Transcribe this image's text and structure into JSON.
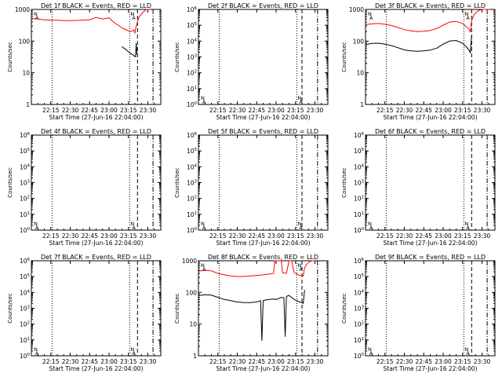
{
  "chart_data": [
    {
      "type": "line",
      "title": "Det 1f BLACK = Events, RED = LLD",
      "xlabel": "Start Time (27-Jun-16 22:04:00)",
      "ylabel": "Counts/sec",
      "yscale": "log",
      "ylim": [
        1,
        1000
      ],
      "ytick_labels": [
        "1",
        "10",
        "100",
        "1000"
      ],
      "xtick_labels": [
        "22:15",
        "22:30",
        "22:45",
        "23:00",
        "23:15",
        "23:30"
      ],
      "x_minutes": [
        15,
        30,
        45,
        60,
        75,
        90
      ],
      "xlim_minutes": [
        0,
        100
      ],
      "corner_labels": [
        "N",
        "A",
        "N",
        "A"
      ],
      "vlines_minutes": {
        "dotted": [
          16,
          76
        ],
        "dashed": [
          82
        ],
        "dashdot": [
          94
        ]
      },
      "series": [
        {
          "name": "RED = LLD",
          "color": "#ff0000",
          "x": [
            0,
            5,
            10,
            15,
            20,
            25,
            30,
            35,
            40,
            45,
            50,
            55,
            60,
            64,
            67,
            70,
            72,
            74,
            75,
            76,
            78,
            79,
            80,
            80.5,
            81,
            83,
            86,
            89,
            92
          ],
          "y": [
            520,
            500,
            470,
            460,
            455,
            445,
            445,
            450,
            460,
            470,
            560,
            500,
            540,
            380,
            320,
            260,
            240,
            220,
            210,
            200,
            210,
            225,
            180,
            240,
            300,
            560,
            800,
            1000,
            1000
          ]
        },
        {
          "name": "BLACK = Events",
          "color": "#000000",
          "x": [
            70,
            71,
            72,
            73,
            74,
            75,
            76,
            77,
            78,
            79,
            80,
            80.5,
            81,
            81.5
          ],
          "y": [
            68,
            62,
            58,
            55,
            50,
            46,
            43,
            40,
            38,
            35,
            33,
            32,
            85,
            38
          ]
        }
      ]
    },
    {
      "type": "line",
      "title": "Det 2f BLACK = Events, RED = LLD",
      "xlabel": "Start Time (27-Jun-16 22:04:00)",
      "ylabel": "Counts/sec",
      "yscale": "log",
      "ylim": [
        1,
        1000000
      ],
      "ytick_labels": [
        "10^0",
        "10^1",
        "10^2",
        "10^3",
        "10^4",
        "10^5",
        "10^6"
      ],
      "xtick_labels": [
        "22:15",
        "22:30",
        "22:45",
        "23:00",
        "23:15",
        "23:30"
      ],
      "x_minutes": [
        15,
        30,
        45,
        60,
        75,
        90
      ],
      "xlim_minutes": [
        0,
        100
      ],
      "corner_labels": [
        "N",
        "A",
        "N",
        "A"
      ],
      "vlines_minutes": {
        "dotted": [
          16,
          76
        ],
        "dashed": [
          80
        ],
        "dashdot": [
          92
        ]
      },
      "series": []
    },
    {
      "type": "line",
      "title": "Det 3f BLACK = Events, RED = LLD",
      "xlabel": "Start Time (27-Jun-16 22:04:00)",
      "ylabel": "Counts/sec",
      "yscale": "log",
      "ylim": [
        1,
        1000
      ],
      "ytick_labels": [
        "1",
        "10",
        "100",
        "1000"
      ],
      "xtick_labels": [
        "22:15",
        "22:30",
        "22:45",
        "23:00",
        "23:15",
        "23:30"
      ],
      "x_minutes": [
        15,
        30,
        45,
        60,
        75,
        90
      ],
      "xlim_minutes": [
        0,
        100
      ],
      "corner_labels": [
        "N",
        "A",
        "N",
        "A"
      ],
      "vlines_minutes": {
        "dotted": [
          16,
          76
        ],
        "dashed": [
          82
        ],
        "dashdot": [
          94
        ]
      },
      "series": [
        {
          "name": "RED = LLD",
          "color": "#ff0000",
          "x": [
            0,
            5,
            10,
            15,
            20,
            25,
            30,
            35,
            40,
            45,
            50,
            55,
            60,
            65,
            70,
            75,
            78,
            80,
            81,
            82,
            84,
            87,
            90,
            93,
            96
          ],
          "y": [
            330,
            350,
            360,
            340,
            310,
            270,
            230,
            210,
            200,
            205,
            215,
            250,
            320,
            400,
            420,
            360,
            280,
            240,
            190,
            450,
            700,
            900,
            1000,
            1000,
            1000
          ]
        },
        {
          "name": "BLACK = Events",
          "color": "#000000",
          "x": [
            0,
            5,
            10,
            15,
            20,
            25,
            30,
            35,
            40,
            45,
            50,
            55,
            60,
            65,
            70,
            75,
            78,
            80,
            81,
            82
          ],
          "y": [
            78,
            85,
            86,
            80,
            72,
            62,
            53,
            49,
            48,
            49,
            52,
            60,
            80,
            100,
            105,
            85,
            65,
            52,
            42,
            150
          ]
        }
      ]
    },
    {
      "type": "line",
      "title": "Det 4f BLACK = Events, RED = LLD",
      "xlabel": "Start Time (27-Jun-16 22:04:00)",
      "ylabel": "Counts/sec",
      "yscale": "log",
      "ylim": [
        1,
        1000000
      ],
      "ytick_labels": [
        "10^0",
        "10^1",
        "10^2",
        "10^3",
        "10^4",
        "10^5",
        "10^6"
      ],
      "xtick_labels": [
        "22:15",
        "22:30",
        "22:45",
        "23:00",
        "23:15",
        "23:30"
      ],
      "x_minutes": [
        15,
        30,
        45,
        60,
        75,
        90
      ],
      "xlim_minutes": [
        0,
        100
      ],
      "corner_labels": [
        "N",
        "A",
        "N",
        "A"
      ],
      "vlines_minutes": {
        "dotted": [
          16,
          76
        ],
        "dashed": [
          82
        ],
        "dashdot": [
          94
        ]
      },
      "series": []
    },
    {
      "type": "line",
      "title": "Det 5f BLACK = Events, RED = LLD",
      "xlabel": "Start Time (27-Jun-16 22:04:00)",
      "ylabel": "Counts/sec",
      "yscale": "log",
      "ylim": [
        1,
        1000000
      ],
      "ytick_labels": [
        "10^0",
        "10^1",
        "10^2",
        "10^3",
        "10^4",
        "10^5",
        "10^6"
      ],
      "xtick_labels": [
        "22:15",
        "22:30",
        "22:45",
        "23:00",
        "23:15",
        "23:30"
      ],
      "x_minutes": [
        15,
        30,
        45,
        60,
        75,
        90
      ],
      "xlim_minutes": [
        0,
        100
      ],
      "corner_labels": [
        "N",
        "A",
        "N",
        "A"
      ],
      "vlines_minutes": {
        "dotted": [
          16,
          76
        ],
        "dashed": [
          80
        ],
        "dashdot": [
          92
        ]
      },
      "series": []
    },
    {
      "type": "line",
      "title": "Det 6f BLACK = Events, RED = LLD",
      "xlabel": "Start Time (27-Jun-16 22:04:00)",
      "ylabel": "Counts/sec",
      "yscale": "log",
      "ylim": [
        1,
        1000000
      ],
      "ytick_labels": [
        "10^0",
        "10^1",
        "10^2",
        "10^3",
        "10^4",
        "10^5",
        "10^6"
      ],
      "xtick_labels": [
        "22:15",
        "22:30",
        "22:45",
        "23:00",
        "23:15",
        "23:30"
      ],
      "x_minutes": [
        15,
        30,
        45,
        60,
        75,
        90
      ],
      "xlim_minutes": [
        0,
        100
      ],
      "corner_labels": [
        "N",
        "A",
        "N",
        "A"
      ],
      "vlines_minutes": {
        "dotted": [
          16,
          76
        ],
        "dashed": [
          82
        ],
        "dashdot": [
          94
        ]
      },
      "series": []
    },
    {
      "type": "line",
      "title": "Det 7f BLACK = Events, RED = LLD",
      "xlabel": "Start Time (27-Jun-16 22:04:00)",
      "ylabel": "Counts/sec",
      "yscale": "log",
      "ylim": [
        1,
        1000000
      ],
      "ytick_labels": [
        "10^0",
        "10^1",
        "10^2",
        "10^3",
        "10^4",
        "10^5",
        "10^6"
      ],
      "xtick_labels": [
        "22:15",
        "22:30",
        "22:45",
        "23:00",
        "23:15",
        "23:30"
      ],
      "x_minutes": [
        15,
        30,
        45,
        60,
        75,
        90
      ],
      "xlim_minutes": [
        0,
        100
      ],
      "corner_labels": [
        "N",
        "A",
        "N",
        "A"
      ],
      "vlines_minutes": {
        "dotted": [
          16,
          76
        ],
        "dashed": [
          82
        ],
        "dashdot": [
          94
        ]
      },
      "series": []
    },
    {
      "type": "line",
      "title": "Det 8f BLACK = Events, RED = LLD",
      "xlabel": "Start Time (27-Jun-16 22:04:00)",
      "ylabel": "Counts/sec",
      "yscale": "log",
      "ylim": [
        1,
        1000
      ],
      "ytick_labels": [
        "1",
        "10",
        "100",
        "1000"
      ],
      "xtick_labels": [
        "22:15",
        "22:30",
        "22:45",
        "23:00",
        "23:15",
        "23:30"
      ],
      "x_minutes": [
        15,
        30,
        45,
        60,
        75,
        90
      ],
      "xlim_minutes": [
        0,
        100
      ],
      "corner_labels": [
        "N",
        "A",
        "N",
        "A"
      ],
      "vlines_minutes": {
        "dotted": [
          16,
          76
        ],
        "dashed": [
          80
        ],
        "dashdot": [
          92
        ]
      },
      "series": [
        {
          "name": "RED = LLD",
          "color": "#ff0000",
          "x": [
            0,
            5,
            10,
            15,
            20,
            25,
            30,
            35,
            40,
            45,
            50,
            55,
            58,
            59,
            60,
            62,
            64,
            65,
            66,
            68,
            70,
            71,
            72,
            74,
            76,
            78,
            80,
            81,
            82,
            84,
            86,
            88,
            90
          ],
          "y": [
            470,
            500,
            480,
            400,
            360,
            330,
            320,
            320,
            330,
            345,
            360,
            380,
            400,
            1000,
            1000,
            1000,
            1000,
            420,
            410,
            400,
            1000,
            1000,
            1000,
            420,
            380,
            350,
            330,
            330,
            600,
            800,
            950,
            1000,
            1000
          ]
        },
        {
          "name": "BLACK = Events",
          "color": "#000000",
          "x": [
            0,
            5,
            10,
            15,
            20,
            25,
            30,
            35,
            40,
            45,
            48,
            49,
            50,
            52,
            55,
            58,
            60,
            64,
            66,
            67,
            68,
            70,
            72,
            74,
            76,
            78,
            80,
            81,
            82
          ],
          "y": [
            80,
            85,
            82,
            70,
            60,
            55,
            50,
            48,
            48,
            50,
            55,
            3,
            55,
            58,
            60,
            62,
            60,
            70,
            68,
            4,
            75,
            80,
            70,
            60,
            55,
            50,
            48,
            45,
            120
          ]
        }
      ]
    },
    {
      "type": "line",
      "title": "Det 9f BLACK = Events, RED = LLD",
      "xlabel": "Start Time (27-Jun-16 22:04:00)",
      "ylabel": "Counts/sec",
      "yscale": "log",
      "ylim": [
        1,
        1000000
      ],
      "ytick_labels": [
        "10^0",
        "10^1",
        "10^2",
        "10^3",
        "10^4",
        "10^5",
        "10^6"
      ],
      "xtick_labels": [
        "22:15",
        "22:30",
        "22:45",
        "23:00",
        "23:15",
        "23:30"
      ],
      "x_minutes": [
        15,
        30,
        45,
        60,
        75,
        90
      ],
      "xlim_minutes": [
        0,
        100
      ],
      "corner_labels": [
        "N",
        "A",
        "N",
        "A"
      ],
      "vlines_minutes": {
        "dotted": [
          16,
          76
        ],
        "dashed": [
          82
        ],
        "dashdot": [
          94
        ]
      },
      "series": []
    }
  ]
}
